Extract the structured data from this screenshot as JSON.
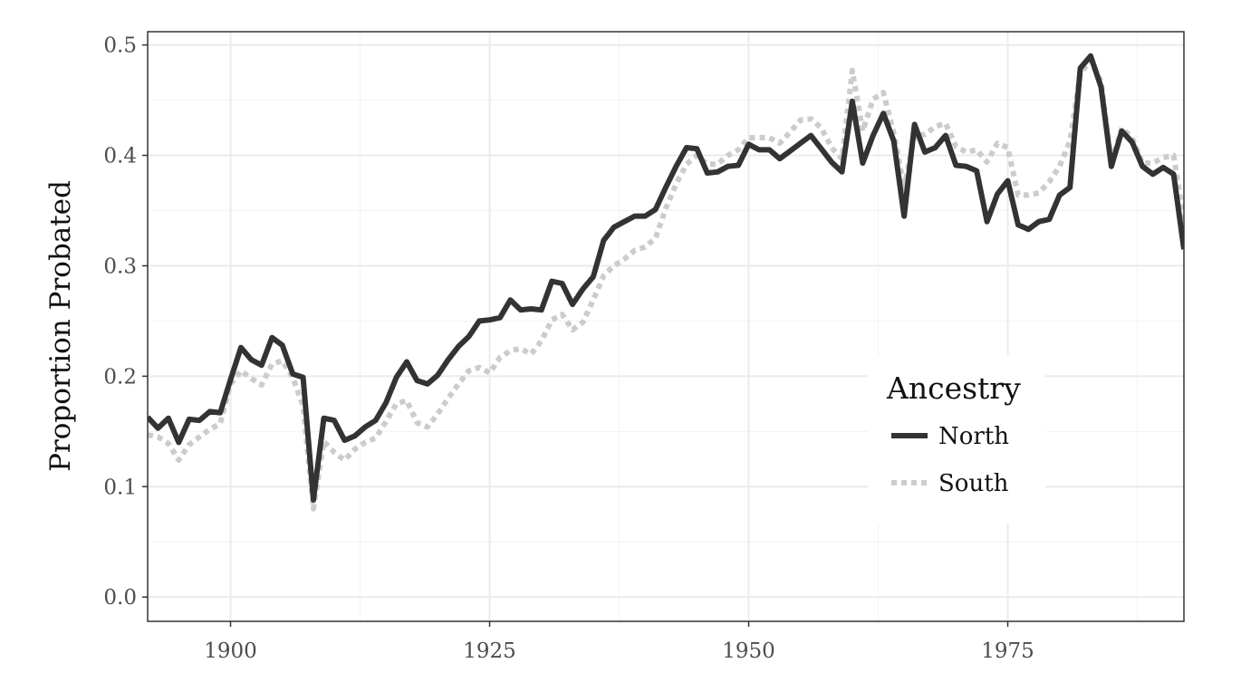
{
  "chart_data": {
    "type": "line",
    "title": "",
    "xlabel": "",
    "ylabel": "Proportion Probated",
    "xlim": [
      1892,
      1992
    ],
    "ylim": [
      -0.022,
      0.512
    ],
    "x_ticks": [
      1900,
      1925,
      1950,
      1975
    ],
    "y_ticks": [
      0.0,
      0.1,
      0.2,
      0.3,
      0.4,
      0.5
    ],
    "x_tick_labels": [
      "1900",
      "1925",
      "1950",
      "1975"
    ],
    "y_tick_labels": [
      "0.0",
      "0.1",
      "0.2",
      "0.3",
      "0.4",
      "0.5"
    ],
    "grid": true,
    "legend": {
      "title": "Ancestry",
      "position": "right"
    },
    "series": [
      {
        "name": "North",
        "color": "#333333",
        "style": "solid",
        "points": [
          [
            1892,
            0.163
          ],
          [
            1893,
            0.153
          ],
          [
            1894,
            0.162
          ],
          [
            1895,
            0.14
          ],
          [
            1896,
            0.161
          ],
          [
            1897,
            0.16
          ],
          [
            1898,
            0.168
          ],
          [
            1899,
            0.167
          ],
          [
            1900,
            0.197
          ],
          [
            1901,
            0.226
          ],
          [
            1902,
            0.215
          ],
          [
            1903,
            0.21
          ],
          [
            1904,
            0.235
          ],
          [
            1905,
            0.228
          ],
          [
            1906,
            0.202
          ],
          [
            1907,
            0.199
          ],
          [
            1908,
            0.088
          ],
          [
            1909,
            0.162
          ],
          [
            1910,
            0.16
          ],
          [
            1911,
            0.142
          ],
          [
            1912,
            0.146
          ],
          [
            1913,
            0.154
          ],
          [
            1914,
            0.16
          ],
          [
            1915,
            0.176
          ],
          [
            1916,
            0.199
          ],
          [
            1917,
            0.213
          ],
          [
            1918,
            0.196
          ],
          [
            1919,
            0.193
          ],
          [
            1920,
            0.201
          ],
          [
            1921,
            0.215
          ],
          [
            1922,
            0.227
          ],
          [
            1923,
            0.236
          ],
          [
            1924,
            0.25
          ],
          [
            1925,
            0.251
          ],
          [
            1926,
            0.253
          ],
          [
            1927,
            0.269
          ],
          [
            1928,
            0.26
          ],
          [
            1929,
            0.261
          ],
          [
            1930,
            0.26
          ],
          [
            1931,
            0.286
          ],
          [
            1932,
            0.284
          ],
          [
            1933,
            0.265
          ],
          [
            1934,
            0.279
          ],
          [
            1935,
            0.29
          ],
          [
            1936,
            0.323
          ],
          [
            1937,
            0.335
          ],
          [
            1938,
            0.34
          ],
          [
            1939,
            0.345
          ],
          [
            1940,
            0.345
          ],
          [
            1941,
            0.351
          ],
          [
            1942,
            0.371
          ],
          [
            1943,
            0.39
          ],
          [
            1944,
            0.407
          ],
          [
            1945,
            0.406
          ],
          [
            1946,
            0.384
          ],
          [
            1947,
            0.385
          ],
          [
            1948,
            0.39
          ],
          [
            1949,
            0.391
          ],
          [
            1950,
            0.41
          ],
          [
            1951,
            0.405
          ],
          [
            1952,
            0.405
          ],
          [
            1953,
            0.397
          ],
          [
            1954,
            0.404
          ],
          [
            1955,
            0.411
          ],
          [
            1956,
            0.418
          ],
          [
            1957,
            0.406
          ],
          [
            1958,
            0.394
          ],
          [
            1959,
            0.385
          ],
          [
            1960,
            0.449
          ],
          [
            1961,
            0.393
          ],
          [
            1962,
            0.418
          ],
          [
            1963,
            0.438
          ],
          [
            1964,
            0.413
          ],
          [
            1965,
            0.345
          ],
          [
            1966,
            0.428
          ],
          [
            1967,
            0.403
          ],
          [
            1968,
            0.407
          ],
          [
            1969,
            0.418
          ],
          [
            1970,
            0.391
          ],
          [
            1971,
            0.39
          ],
          [
            1972,
            0.386
          ],
          [
            1973,
            0.34
          ],
          [
            1974,
            0.365
          ],
          [
            1975,
            0.377
          ],
          [
            1976,
            0.337
          ],
          [
            1977,
            0.333
          ],
          [
            1978,
            0.34
          ],
          [
            1979,
            0.342
          ],
          [
            1980,
            0.364
          ],
          [
            1981,
            0.371
          ],
          [
            1982,
            0.479
          ],
          [
            1983,
            0.49
          ],
          [
            1984,
            0.462
          ],
          [
            1985,
            0.39
          ],
          [
            1986,
            0.422
          ],
          [
            1987,
            0.412
          ],
          [
            1988,
            0.39
          ],
          [
            1989,
            0.383
          ],
          [
            1990,
            0.389
          ],
          [
            1991,
            0.383
          ],
          [
            1992,
            0.315
          ]
        ]
      },
      {
        "name": "South",
        "color": "#cccccc",
        "style": "dotted",
        "points": [
          [
            1892,
            0.147
          ],
          [
            1893,
            0.145
          ],
          [
            1894,
            0.139
          ],
          [
            1895,
            0.124
          ],
          [
            1896,
            0.138
          ],
          [
            1897,
            0.145
          ],
          [
            1898,
            0.152
          ],
          [
            1899,
            0.157
          ],
          [
            1900,
            0.193
          ],
          [
            1901,
            0.205
          ],
          [
            1902,
            0.198
          ],
          [
            1903,
            0.192
          ],
          [
            1904,
            0.211
          ],
          [
            1905,
            0.214
          ],
          [
            1906,
            0.199
          ],
          [
            1907,
            0.173
          ],
          [
            1908,
            0.08
          ],
          [
            1909,
            0.141
          ],
          [
            1910,
            0.131
          ],
          [
            1911,
            0.124
          ],
          [
            1912,
            0.134
          ],
          [
            1913,
            0.14
          ],
          [
            1914,
            0.144
          ],
          [
            1915,
            0.159
          ],
          [
            1916,
            0.175
          ],
          [
            1917,
            0.178
          ],
          [
            1918,
            0.158
          ],
          [
            1919,
            0.154
          ],
          [
            1920,
            0.166
          ],
          [
            1921,
            0.18
          ],
          [
            1922,
            0.193
          ],
          [
            1923,
            0.205
          ],
          [
            1924,
            0.208
          ],
          [
            1925,
            0.203
          ],
          [
            1926,
            0.217
          ],
          [
            1927,
            0.223
          ],
          [
            1928,
            0.225
          ],
          [
            1929,
            0.22
          ],
          [
            1930,
            0.232
          ],
          [
            1931,
            0.251
          ],
          [
            1932,
            0.256
          ],
          [
            1933,
            0.242
          ],
          [
            1934,
            0.249
          ],
          [
            1935,
            0.269
          ],
          [
            1936,
            0.291
          ],
          [
            1937,
            0.3
          ],
          [
            1938,
            0.306
          ],
          [
            1939,
            0.314
          ],
          [
            1940,
            0.317
          ],
          [
            1941,
            0.325
          ],
          [
            1942,
            0.352
          ],
          [
            1943,
            0.374
          ],
          [
            1944,
            0.392
          ],
          [
            1945,
            0.4
          ],
          [
            1946,
            0.392
          ],
          [
            1947,
            0.392
          ],
          [
            1948,
            0.4
          ],
          [
            1949,
            0.405
          ],
          [
            1950,
            0.416
          ],
          [
            1951,
            0.416
          ],
          [
            1952,
            0.416
          ],
          [
            1953,
            0.411
          ],
          [
            1954,
            0.421
          ],
          [
            1955,
            0.432
          ],
          [
            1956,
            0.433
          ],
          [
            1957,
            0.425
          ],
          [
            1958,
            0.407
          ],
          [
            1959,
            0.397
          ],
          [
            1960,
            0.477
          ],
          [
            1961,
            0.422
          ],
          [
            1962,
            0.451
          ],
          [
            1963,
            0.457
          ],
          [
            1964,
            0.42
          ],
          [
            1965,
            0.37
          ],
          [
            1966,
            0.418
          ],
          [
            1967,
            0.419
          ],
          [
            1968,
            0.426
          ],
          [
            1969,
            0.429
          ],
          [
            1970,
            0.408
          ],
          [
            1971,
            0.403
          ],
          [
            1972,
            0.405
          ],
          [
            1973,
            0.394
          ],
          [
            1974,
            0.411
          ],
          [
            1975,
            0.407
          ],
          [
            1976,
            0.364
          ],
          [
            1977,
            0.364
          ],
          [
            1978,
            0.366
          ],
          [
            1979,
            0.376
          ],
          [
            1980,
            0.39
          ],
          [
            1981,
            0.413
          ],
          [
            1982,
            0.474
          ],
          [
            1983,
            0.486
          ],
          [
            1984,
            0.467
          ],
          [
            1985,
            0.393
          ],
          [
            1986,
            0.425
          ],
          [
            1987,
            0.416
          ],
          [
            1988,
            0.393
          ],
          [
            1989,
            0.393
          ],
          [
            1990,
            0.398
          ],
          [
            1991,
            0.4
          ],
          [
            1992,
            0.34
          ]
        ]
      }
    ]
  }
}
